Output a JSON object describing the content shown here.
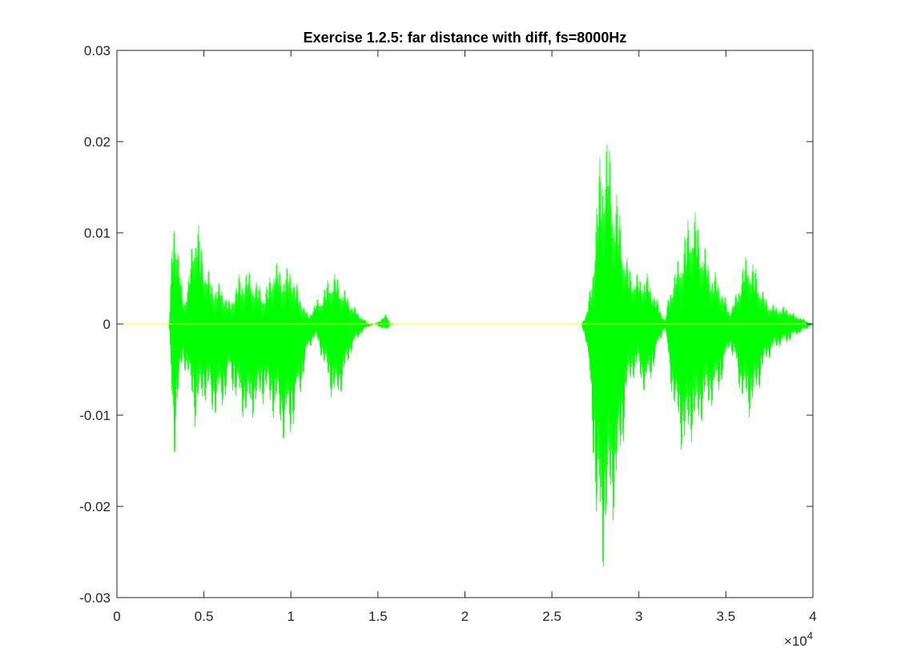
{
  "chart_data": {
    "type": "line",
    "title": "Exercise 1.2.5: far distance with diff, fs=8000Hz",
    "xlabel": "",
    "ylabel": "",
    "xlim": [
      0,
      40000
    ],
    "ylim": [
      -0.03,
      0.03
    ],
    "x_exponent_label": "×10",
    "x_exponent_power": "4",
    "x_ticks": [
      0,
      5000,
      10000,
      15000,
      20000,
      25000,
      30000,
      35000,
      40000
    ],
    "x_tick_labels": [
      "0",
      "0.5",
      "1",
      "1.5",
      "2",
      "2.5",
      "3",
      "3.5",
      "4"
    ],
    "y_ticks": [
      -0.03,
      -0.02,
      -0.01,
      0,
      0.01,
      0.02,
      0.03
    ],
    "y_tick_labels": [
      "-0.03",
      "-0.02",
      "-0.01",
      "0",
      "0.01",
      "0.02",
      "0.03"
    ],
    "grid": false,
    "series": [
      {
        "color": "#00ff00",
        "description": "envelope of the waveform",
        "envelope_x": [
          3000,
          3150,
          3300,
          3500,
          3800,
          4100,
          4500,
          4800,
          5100,
          5500,
          6000,
          6500,
          7000,
          7500,
          8000,
          8500,
          9000,
          9300,
          9600,
          10000,
          10500,
          11000,
          11400,
          11800,
          12200,
          12600,
          13000,
          13500,
          14000,
          14400,
          14800,
          15300,
          15500,
          15700,
          16000,
          26700,
          27000,
          27300,
          27600,
          27900,
          28200,
          28400,
          28700,
          29000,
          29300,
          29600,
          30000,
          30400,
          30800,
          31200,
          31500,
          31800,
          32200,
          32600,
          33000,
          33300,
          33700,
          34100,
          34500,
          34900,
          35200,
          35600,
          36000,
          36300,
          36700,
          37000,
          37300,
          37700,
          38100,
          38500,
          38900,
          39300,
          39700,
          40000
        ],
        "envelope_max": [
          0,
          0.0085,
          0.016,
          0.009,
          0.003,
          0.005,
          0.0133,
          0.01,
          0.007,
          0.0048,
          0.0045,
          0.0025,
          0.0055,
          0.0062,
          0.005,
          0.0035,
          0.0072,
          0.0068,
          0.006,
          0.0068,
          0.0035,
          0.001,
          0.0025,
          0.0035,
          0.0055,
          0.0058,
          0.0042,
          0.0025,
          0.001,
          0.0002,
          0,
          0.0008,
          0.0012,
          0.0001,
          0,
          0,
          0.0015,
          0.0055,
          0.0155,
          0.0215,
          0.022,
          0.0185,
          0.0155,
          0.0115,
          0.0075,
          0.0062,
          0.0055,
          0.006,
          0.0042,
          0.002,
          0.0004,
          0.0045,
          0.007,
          0.01,
          0.0135,
          0.0125,
          0.0095,
          0.0065,
          0.0055,
          0.0035,
          0.0015,
          0.0035,
          0.0072,
          0.008,
          0.0065,
          0.0045,
          0.003,
          0.0022,
          0.002,
          0.002,
          0.0012,
          0.0008,
          0.0003,
          0
        ],
        "envelope_min": [
          0,
          -0.01,
          -0.0155,
          -0.009,
          -0.0045,
          -0.0065,
          -0.0115,
          -0.0095,
          -0.0085,
          -0.0105,
          -0.01,
          -0.0065,
          -0.0098,
          -0.0112,
          -0.01,
          -0.0085,
          -0.0105,
          -0.0112,
          -0.0135,
          -0.0128,
          -0.0085,
          -0.003,
          -0.0015,
          -0.004,
          -0.0075,
          -0.0095,
          -0.007,
          -0.003,
          -0.0012,
          -0.0004,
          0,
          -0.0006,
          -0.0008,
          -0.0001,
          0,
          0,
          -0.0025,
          -0.0115,
          -0.0255,
          -0.0282,
          -0.0235,
          -0.023,
          -0.02,
          -0.0155,
          -0.0085,
          -0.0062,
          -0.0058,
          -0.0085,
          -0.0055,
          -0.002,
          -0.0004,
          -0.0065,
          -0.0125,
          -0.015,
          -0.013,
          -0.0125,
          -0.0105,
          -0.0095,
          -0.0085,
          -0.0055,
          -0.0025,
          -0.0055,
          -0.0095,
          -0.0105,
          -0.009,
          -0.0065,
          -0.0045,
          -0.0032,
          -0.0025,
          -0.0022,
          -0.0015,
          -0.001,
          -0.0005,
          0
        ]
      },
      {
        "color": "#ffff00",
        "description": "horizontal line at zero",
        "x": [
          0,
          40000
        ],
        "y": [
          0,
          0
        ]
      }
    ]
  }
}
